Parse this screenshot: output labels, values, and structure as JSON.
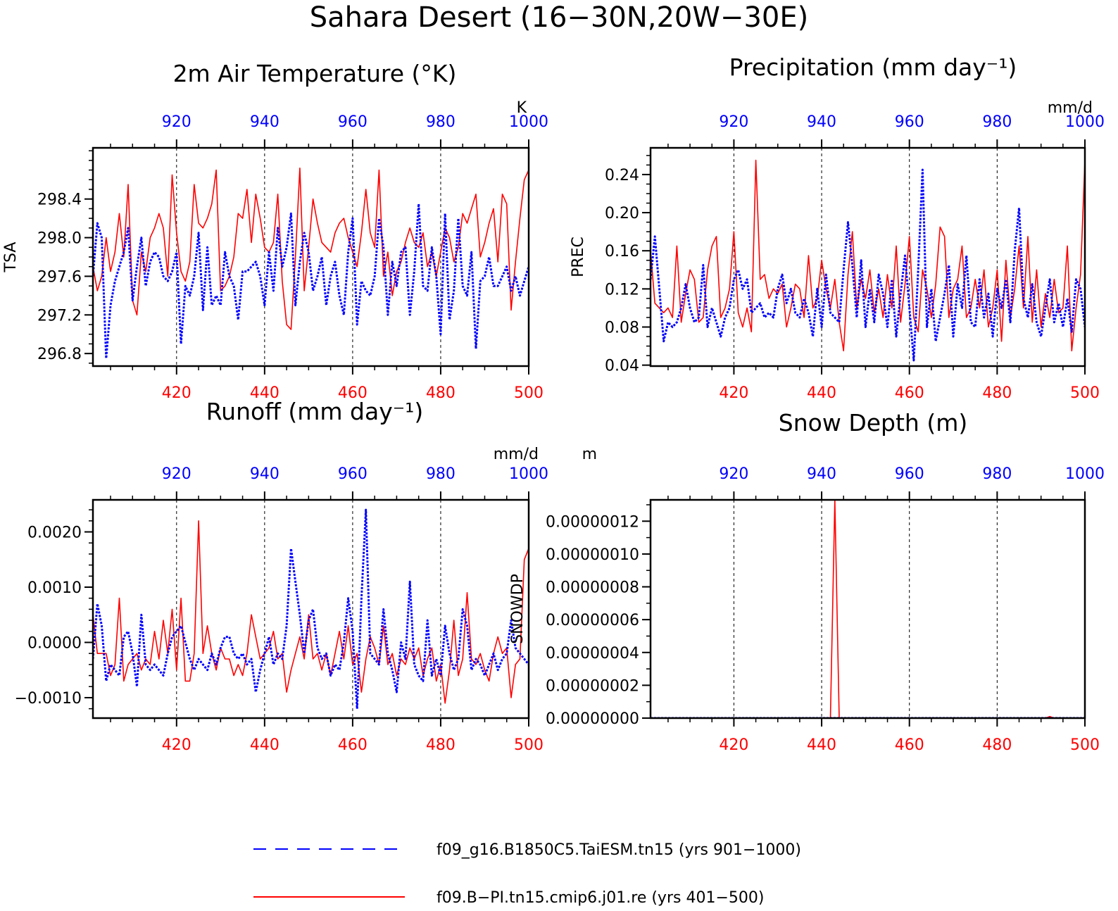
{
  "figure_title": "Sahara Desert (16−30N,20W−30E)",
  "colors": {
    "red_series": "#ff0000",
    "blue_series": "#0000ff",
    "bottom_axis_labels": "#ff0000",
    "top_axis_labels": "#0000ff"
  },
  "legend": [
    {
      "label": "f09_g16.B1850C5.TaiESM.tn15 (yrs 901−1000)",
      "color": "#0000ff",
      "style": "dashed"
    },
    {
      "label": "f09.B−PI.tn15.cmip6.j01.re (yrs 401−500)",
      "color": "#ff0000",
      "style": "solid"
    }
  ],
  "chart_data": [
    {
      "type": "line",
      "title": "2m Air Temperature (°K)",
      "ylabel": "TSA",
      "units_label": "K",
      "xlim_bottom": [
        401,
        500
      ],
      "xlim_top": [
        901,
        1000
      ],
      "ylim": [
        296.67,
        298.93
      ],
      "x_ticks_bottom": [
        "420",
        "440",
        "460",
        "480",
        "500"
      ],
      "x_ticks_top": [
        "920",
        "940",
        "960",
        "980",
        "1000"
      ],
      "y_ticks": [
        "296.8",
        "297.2",
        "297.6",
        "298.0",
        "298.4"
      ],
      "y_tick_values": [
        296.8,
        297.2,
        297.6,
        298.0,
        298.4
      ],
      "y_minor_step": 0.1,
      "series": [
        {
          "name": "f09.B−PI.tn15.cmip6.j01.re (yrs 401−500)",
          "color": "#ff0000",
          "axis": "bottom",
          "values": [
            297.7,
            297.45,
            297.6,
            298.0,
            297.65,
            297.85,
            298.25,
            297.8,
            298.55,
            297.35,
            297.2,
            297.85,
            297.65,
            298.0,
            298.1,
            298.25,
            298.1,
            297.6,
            298.65,
            298.05,
            297.65,
            297.55,
            297.75,
            298.55,
            298.15,
            298.1,
            298.2,
            298.35,
            298.7,
            297.45,
            297.5,
            297.6,
            297.8,
            298.25,
            298.2,
            298.5,
            297.95,
            298.45,
            298.2,
            297.9,
            297.85,
            297.95,
            298.45,
            297.55,
            297.1,
            297.05,
            297.8,
            298.72,
            297.45,
            297.9,
            298.4,
            298.15,
            297.95,
            297.9,
            297.85,
            298.05,
            298.15,
            298.2,
            298.0,
            297.85,
            297.7,
            298.05,
            298.5,
            298.05,
            297.9,
            298.7,
            297.6,
            297.85,
            297.4,
            297.65,
            297.75,
            297.95,
            298.1,
            297.95,
            297.9,
            298.05,
            297.7,
            297.85,
            297.6,
            297.85,
            298.1,
            298.0,
            297.75,
            297.9,
            298.25,
            298.15,
            298.3,
            298.45,
            297.8,
            297.95,
            298.15,
            298.3,
            297.75,
            298.45,
            298.35,
            297.25,
            297.75,
            298.2,
            298.6,
            298.7
          ]
        },
        {
          "name": "f09_g16.B1850C5.TaiESM.tn15 (yrs 901−1000)",
          "color": "#0000ff",
          "axis": "top",
          "values": [
            297.6,
            298.15,
            298.0,
            296.75,
            297.3,
            297.55,
            297.7,
            297.85,
            298.1,
            297.35,
            297.7,
            298.0,
            297.5,
            297.75,
            297.85,
            297.8,
            297.6,
            297.55,
            297.65,
            297.85,
            296.9,
            297.5,
            297.4,
            297.6,
            298.05,
            297.25,
            297.9,
            297.3,
            297.4,
            297.3,
            297.85,
            297.6,
            297.5,
            297.15,
            297.65,
            297.65,
            297.7,
            297.75,
            297.6,
            297.3,
            297.85,
            297.45,
            298.1,
            297.7,
            297.9,
            298.25,
            297.3,
            297.75,
            298.05,
            297.85,
            297.45,
            297.6,
            297.8,
            297.3,
            297.6,
            297.75,
            297.4,
            297.2,
            297.85,
            298.2,
            297.1,
            297.55,
            297.45,
            297.4,
            297.6,
            298.2,
            297.9,
            297.2,
            297.75,
            297.5,
            297.85,
            297.9,
            297.2,
            297.65,
            298.35,
            297.5,
            297.45,
            297.9,
            297.6,
            297.0,
            298.25,
            297.15,
            297.45,
            298.2,
            297.5,
            297.4,
            297.85,
            296.85,
            297.55,
            297.6,
            297.8,
            297.5,
            297.5,
            297.6,
            297.7,
            297.45,
            297.6,
            297.4,
            297.55,
            297.7
          ]
        }
      ]
    },
    {
      "type": "line",
      "title": "Precipitation (mm day⁻¹)",
      "ylabel": "PREC",
      "units_label": "mm/d",
      "xlim_bottom": [
        401,
        500
      ],
      "xlim_top": [
        901,
        1000
      ],
      "ylim": [
        0.039,
        0.268
      ],
      "x_ticks_bottom": [
        "420",
        "440",
        "460",
        "480",
        "500"
      ],
      "x_ticks_top": [
        "920",
        "940",
        "960",
        "980",
        "1000"
      ],
      "y_ticks": [
        "0.04",
        "0.08",
        "0.12",
        "0.16",
        "0.20",
        "0.24"
      ],
      "y_tick_values": [
        0.04,
        0.08,
        0.12,
        0.16,
        0.2,
        0.24
      ],
      "y_minor_step": 0.01,
      "series": [
        {
          "name": "f09.B−PI.tn15.cmip6.j01.re (yrs 401−500)",
          "color": "#ff0000",
          "axis": "bottom",
          "values": [
            0.16,
            0.105,
            0.1,
            0.095,
            0.1,
            0.09,
            0.165,
            0.085,
            0.115,
            0.14,
            0.13,
            0.085,
            0.09,
            0.14,
            0.165,
            0.175,
            0.09,
            0.1,
            0.12,
            0.18,
            0.095,
            0.08,
            0.1,
            0.075,
            0.255,
            0.13,
            0.135,
            0.11,
            0.12,
            0.115,
            0.125,
            0.08,
            0.1,
            0.125,
            0.12,
            0.09,
            0.155,
            0.1,
            0.11,
            0.15,
            0.12,
            0.1,
            0.13,
            0.085,
            0.055,
            0.135,
            0.18,
            0.1,
            0.13,
            0.11,
            0.14,
            0.095,
            0.12,
            0.09,
            0.135,
            0.1,
            0.165,
            0.085,
            0.125,
            0.175,
            0.09,
            0.075,
            0.14,
            0.12,
            0.09,
            0.125,
            0.185,
            0.175,
            0.09,
            0.12,
            0.13,
            0.165,
            0.09,
            0.1,
            0.13,
            0.1,
            0.14,
            0.08,
            0.1,
            0.14,
            0.065,
            0.15,
            0.09,
            0.12,
            0.165,
            0.1,
            0.175,
            0.085,
            0.14,
            0.08,
            0.115,
            0.09,
            0.13,
            0.095,
            0.1,
            0.165,
            0.055,
            0.1,
            0.135,
            0.255
          ]
        },
        {
          "name": "f09_g16.B1850C5.TaiESM.tn15 (yrs 901−1000)",
          "color": "#0000ff",
          "axis": "top",
          "values": [
            0.13,
            0.175,
            0.12,
            0.065,
            0.085,
            0.08,
            0.085,
            0.1,
            0.125,
            0.1,
            0.085,
            0.09,
            0.145,
            0.08,
            0.1,
            0.085,
            0.07,
            0.09,
            0.1,
            0.13,
            0.14,
            0.12,
            0.13,
            0.095,
            0.1,
            0.105,
            0.09,
            0.095,
            0.09,
            0.12,
            0.135,
            0.105,
            0.12,
            0.095,
            0.09,
            0.11,
            0.095,
            0.07,
            0.12,
            0.08,
            0.135,
            0.095,
            0.09,
            0.085,
            0.14,
            0.19,
            0.145,
            0.09,
            0.15,
            0.08,
            0.12,
            0.085,
            0.135,
            0.115,
            0.08,
            0.13,
            0.07,
            0.115,
            0.155,
            0.1,
            0.045,
            0.14,
            0.245,
            0.08,
            0.12,
            0.065,
            0.09,
            0.115,
            0.145,
            0.07,
            0.125,
            0.1,
            0.155,
            0.085,
            0.08,
            0.13,
            0.09,
            0.115,
            0.07,
            0.12,
            0.1,
            0.13,
            0.085,
            0.16,
            0.205,
            0.11,
            0.09,
            0.125,
            0.085,
            0.07,
            0.1,
            0.13,
            0.085,
            0.105,
            0.08,
            0.11,
            0.075,
            0.13,
            0.12,
            0.08
          ]
        }
      ]
    },
    {
      "type": "line",
      "title": "Runoff (mm day⁻¹)",
      "ylabel": "",
      "units_label": "mm/d",
      "xlim_bottom": [
        401,
        500
      ],
      "xlim_top": [
        901,
        1000
      ],
      "ylim": [
        -0.00137,
        0.00258
      ],
      "x_ticks_bottom": [
        "420",
        "440",
        "460",
        "480",
        "500"
      ],
      "x_ticks_top": [
        "920",
        "940",
        "960",
        "980",
        "1000"
      ],
      "y_ticks": [
        "−0.0010",
        "0.0000",
        "0.0010",
        "0.0020"
      ],
      "y_tick_values": [
        -0.001,
        0.0,
        0.001,
        0.002
      ],
      "y_minor_step": 0.0002,
      "series": [
        {
          "name": "f09.B−PI.tn15.cmip6.j01.re (yrs 401−500)",
          "color": "#ff0000",
          "axis": "bottom",
          "values": [
            0.0005,
            -0.0002,
            -0.0002,
            -0.0002,
            -0.0006,
            -0.0004,
            0.0008,
            -0.0007,
            -0.0004,
            -0.0003,
            -0.0002,
            -0.0005,
            -0.0003,
            -0.0004,
            0.0002,
            -0.0003,
            0.0004,
            -0.0002,
            0.0006,
            -0.0005,
            0.0008,
            -0.0007,
            -0.0007,
            -0.0002,
            0.0022,
            -0.0002,
            0.0003,
            -0.0002,
            -0.0005,
            -0.0001,
            -0.0003,
            -0.0003,
            -0.0006,
            -0.0004,
            -0.0006,
            -0.0002,
            0.0005,
            0.0001,
            -0.0003,
            -0.0002,
            -0.0001,
            0.0002,
            -0.0003,
            -0.0002,
            -0.0009,
            -0.0005,
            -0.0002,
            0.0001,
            -0.0003,
            0.0005,
            -0.0003,
            -0.0002,
            -0.0005,
            -0.0002,
            -0.0006,
            -0.0002,
            0.0002,
            -0.0003,
            0.0003,
            -0.0004,
            -0.0002,
            -0.0009,
            -0.0003,
            0.0001,
            -0.0001,
            -0.0004,
            0.0003,
            -0.0004,
            -0.0002,
            -0.0006,
            -0.0003,
            -0.0004,
            -0.0001,
            -0.0003,
            -0.0001,
            -0.0006,
            -0.0003,
            -0.0001,
            -0.0007,
            -0.0004,
            -0.0011,
            -0.0005,
            0.0004,
            -0.0006,
            -0.0003,
            0.0009,
            -0.0003,
            -0.0004,
            -0.0002,
            -0.0005,
            -0.0007,
            -0.0002,
            0.0001,
            -0.0002,
            -0.0001,
            -0.001,
            -0.0004,
            -0.0003,
            0.0015,
            0.0017
          ]
        },
        {
          "name": "f09_g16.B1850C5.TaiESM.tn15 (yrs 901−1000)",
          "color": "#0000ff",
          "axis": "top",
          "values": [
            -0.0003,
            0.0007,
            0.0003,
            -0.0007,
            -0.0004,
            -0.0005,
            -0.0006,
            0.0001,
            0.0002,
            -0.0002,
            -0.0008,
            0.0005,
            -0.0004,
            -0.0005,
            -0.0004,
            -0.0005,
            -0.0006,
            -0.0002,
            0.0001,
            0.0002,
            0.0003,
            0.0,
            -0.0003,
            -0.0005,
            -0.0003,
            -0.0004,
            -0.0005,
            -0.0002,
            -0.0004,
            -0.0001,
            0.0001,
            0.0001,
            -0.0002,
            -0.0003,
            -0.0002,
            -0.0004,
            -0.0003,
            -0.0009,
            -0.0005,
            -0.0002,
            0.0001,
            -0.0004,
            -0.0002,
            -0.0003,
            0.0003,
            0.0017,
            0.0011,
            0.0005,
            -0.0002,
            0.0004,
            0.0006,
            -0.0001,
            -0.0003,
            -0.0002,
            -0.0006,
            -0.0004,
            -0.0005,
            0.0,
            0.0008,
            0.0002,
            -0.0012,
            0.0008,
            0.0024,
            -0.0002,
            -0.0003,
            -0.0004,
            0.0006,
            -0.0002,
            -0.0005,
            -0.0009,
            0.0,
            -0.0003,
            0.0011,
            -0.0004,
            -0.0006,
            -0.0007,
            0.0004,
            -0.0006,
            -0.0003,
            -0.0006,
            0.0003,
            -0.0002,
            -0.0005,
            -0.0003,
            0.0006,
            0.0003,
            -0.0005,
            -0.0003,
            -0.0004,
            -0.0006,
            -0.0004,
            -0.0002,
            -0.0005,
            -0.0003,
            -0.0002,
            0.0004,
            -0.0001,
            -0.0002,
            -0.0003,
            -0.0004
          ]
        }
      ]
    },
    {
      "type": "line",
      "title": "Snow Depth (m)",
      "ylabel": "SNOWDP",
      "units_label": "m",
      "xlim_bottom": [
        401,
        500
      ],
      "xlim_top": [
        901,
        1000
      ],
      "ylim": [
        0.0,
        1.33e-07
      ],
      "x_ticks_bottom": [
        "420",
        "440",
        "460",
        "480",
        "500"
      ],
      "x_ticks_top": [
        "920",
        "940",
        "960",
        "980",
        "1000"
      ],
      "y_ticks": [
        "0.00000000",
        "0.00000002",
        "0.00000004",
        "0.00000006",
        "0.00000008",
        "0.00000010",
        "0.00000012"
      ],
      "y_tick_values": [
        0.0,
        2e-08,
        4e-08,
        6e-08,
        8e-08,
        1e-07,
        1.2e-07
      ],
      "y_minor_step": 1e-08,
      "series": [
        {
          "name": "f09.B−PI.tn15.cmip6.j01.re (yrs 401−500)",
          "color": "#ff0000",
          "axis": "bottom",
          "values": [
            0,
            0,
            0,
            0,
            0,
            0,
            0,
            0,
            0,
            0,
            0,
            0,
            0,
            0,
            0,
            0,
            0,
            0,
            0,
            0,
            0,
            0,
            0,
            0,
            0,
            0,
            0,
            0,
            0,
            0,
            0,
            0,
            0,
            0,
            0,
            0,
            0,
            0,
            0,
            0,
            0,
            0,
            1.33e-07,
            0,
            0,
            0,
            0,
            0,
            0,
            0,
            0,
            0,
            0,
            0,
            0,
            0,
            0,
            0,
            0,
            0,
            0,
            0,
            0,
            0,
            0,
            0,
            0,
            0,
            0,
            0,
            0,
            0,
            0,
            0,
            0,
            0,
            0,
            0,
            0,
            0,
            0,
            0,
            0,
            0,
            0,
            0,
            0,
            0,
            0,
            0,
            0,
            1e-09,
            0,
            0,
            0,
            0,
            0,
            0,
            0,
            0
          ]
        },
        {
          "name": "f09_g16.B1850C5.TaiESM.tn15 (yrs 901−1000)",
          "color": "#0000ff",
          "axis": "top",
          "values": [
            0,
            0,
            0,
            0,
            0,
            0,
            0,
            0,
            0,
            0,
            0,
            0,
            0,
            0,
            0,
            0,
            0,
            0,
            0,
            0,
            0,
            0,
            0,
            0,
            0,
            0,
            0,
            0,
            0,
            0,
            0,
            0,
            0,
            0,
            0,
            0,
            0,
            0,
            0,
            0,
            0,
            0,
            0,
            0,
            0,
            0,
            0,
            0,
            0,
            0,
            0,
            0,
            0,
            0,
            0,
            0,
            0,
            0,
            0,
            0,
            0,
            0,
            0,
            0,
            0,
            0,
            0,
            0,
            0,
            0,
            0,
            0,
            0,
            0,
            0,
            0,
            0,
            0,
            0,
            0,
            0,
            0,
            0,
            0,
            0,
            0,
            0,
            0,
            0,
            0,
            0,
            0,
            0,
            0,
            0,
            0,
            0,
            0,
            0,
            0
          ]
        }
      ]
    }
  ]
}
